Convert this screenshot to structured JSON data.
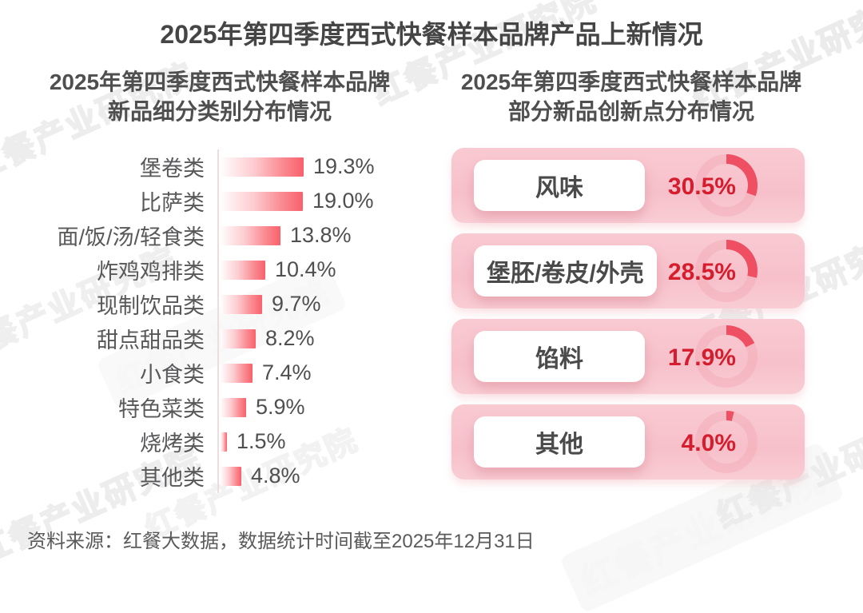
{
  "title": "2025年第四季度西式快餐样本品牌产品上新情况",
  "source": "资料来源：红餐大数据，数据统计时间截至2025年12月31日",
  "watermark": "红餐产业研究院",
  "left_panel": {
    "subtitle_line1": "2025年第四季度西式快餐样本品牌",
    "subtitle_line2": "新品细分类别分布情况"
  },
  "right_panel": {
    "subtitle_line1": "2025年第四季度西式快餐样本品牌",
    "subtitle_line2": "部分新品创新点分布情况"
  },
  "colors": {
    "value_red": "#d51d2e",
    "arc_red": "#ee4f62",
    "ring_pink": "#f2a9b4",
    "bar_gradient_start": "#fffdfd",
    "bar_gradient_end": "#f9606c",
    "card_pink": "#f8c6ce",
    "title_gray": "#454545",
    "label_gray": "#58585a"
  },
  "chart_data": [
    {
      "type": "bar",
      "orientation": "horizontal",
      "title": "2025年第四季度西式快餐样本品牌新品细分类别分布情况",
      "categories": [
        "堡卷类",
        "比萨类",
        "面/饭/汤/轻食类",
        "炸鸡鸡排类",
        "现制饮品类",
        "甜点甜品类",
        "小食类",
        "特色菜类",
        "烧烤类",
        "其他类"
      ],
      "values": [
        19.3,
        19.0,
        13.8,
        10.4,
        9.7,
        8.2,
        7.4,
        5.9,
        1.5,
        4.8
      ],
      "value_labels": [
        "19.3%",
        "19.0%",
        "13.8%",
        "10.4%",
        "9.7%",
        "8.2%",
        "7.4%",
        "5.9%",
        "1.5%",
        "4.8%"
      ],
      "unit": "%",
      "xlim": [
        0,
        20
      ],
      "grid": false,
      "legend": false
    },
    {
      "type": "pie",
      "subtype": "donut-gauge-list",
      "title": "2025年第四季度西式快餐样本品牌部分新品创新点分布情况",
      "categories": [
        "风味",
        "堡胚/卷皮/外壳",
        "馅料",
        "其他"
      ],
      "values": [
        30.5,
        28.5,
        17.9,
        4.0
      ],
      "value_labels": [
        "30.5%",
        "28.5%",
        "17.9%",
        "4.0%"
      ],
      "unit": "%",
      "legend": false
    }
  ]
}
